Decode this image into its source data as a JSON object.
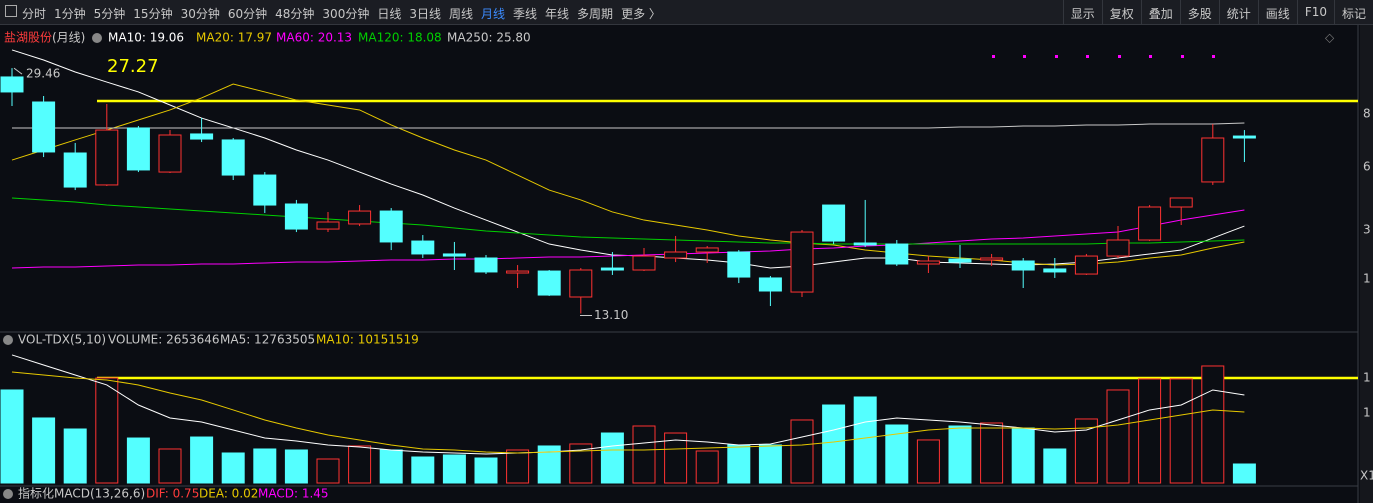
{
  "toolbar": {
    "periods": [
      "分时",
      "1分钟",
      "5分钟",
      "15分钟",
      "30分钟",
      "60分钟",
      "48分钟",
      "300分钟",
      "日线",
      "3日线",
      "周线",
      "月线",
      "季线",
      "年线",
      "多周期",
      "更多 〉"
    ],
    "active_period": 11,
    "tools": [
      "显示",
      "复权",
      "叠加",
      "多股",
      "统计",
      "画线",
      "F10",
      "标记"
    ]
  },
  "legend": {
    "stock": "盐湖股份",
    "period": "(月线)",
    "ma": [
      "MA10: 19.06",
      "MA20: 17.97",
      "MA60: 20.13",
      "MA120: 18.08",
      "MA250: 25.80"
    ],
    "right_axis": [
      "8",
      "6",
      "3",
      "1"
    ]
  },
  "annotations": {
    "high": 29.46,
    "low": {
      "value": 13.1,
      "label": "13.10"
    }
  },
  "chart_data": {
    "type": "candlestick",
    "ylim": [
      12,
      32
    ],
    "up_color": "#ff3232",
    "down_color": "#54ffff",
    "price_line": 27.27,
    "open": [
      28.87,
      27.2,
      23.8,
      21.67,
      25.47,
      22.53,
      25.07,
      24.67,
      22.33,
      20.4,
      18.73,
      19.07,
      19.93,
      17.93,
      17.07,
      16.8,
      15.8,
      15.93,
      14.2,
      16.13,
      16.0,
      16.8,
      17.2,
      17.2,
      15.47,
      14.53,
      20.33,
      17.8,
      17.73,
      16.4,
      16.73,
      16.67,
      16.6,
      16.07,
      15.73,
      16.93,
      18.0,
      20.2,
      21.87,
      24.93
    ],
    "high": [
      29.46,
      27.6,
      24.47,
      27.07,
      25.6,
      25.33,
      26.13,
      24.8,
      22.53,
      20.67,
      19.87,
      20.33,
      20.13,
      18.33,
      17.87,
      17.0,
      16.33,
      16.0,
      16.13,
      17.2,
      17.47,
      18.27,
      17.6,
      17.33,
      15.6,
      18.67,
      20.33,
      20.67,
      18.0,
      16.93,
      17.67,
      17.07,
      16.8,
      16.8,
      17.07,
      18.93,
      20.33,
      20.8,
      25.73,
      25.33
    ],
    "low": [
      26.93,
      23.53,
      21.33,
      21.6,
      22.53,
      22.47,
      24.53,
      22.0,
      19.8,
      18.53,
      18.53,
      18.93,
      17.33,
      16.8,
      16.0,
      15.73,
      14.8,
      14.27,
      13.1,
      15.67,
      15.93,
      16.53,
      16.47,
      15.13,
      13.6,
      14.2,
      17.73,
      17.53,
      16.27,
      15.8,
      16.13,
      16.27,
      14.8,
      15.47,
      15.67,
      16.8,
      17.93,
      19.0,
      21.67,
      23.2
    ],
    "close": [
      27.87,
      23.87,
      21.53,
      25.33,
      22.67,
      25.0,
      24.73,
      22.33,
      20.33,
      18.73,
      19.2,
      19.93,
      17.87,
      17.07,
      16.93,
      15.87,
      15.93,
      14.33,
      16.0,
      16.0,
      16.93,
      17.2,
      17.47,
      15.53,
      14.6,
      18.53,
      17.93,
      17.67,
      16.4,
      16.6,
      16.53,
      16.8,
      16.0,
      15.87,
      16.93,
      18.0,
      20.2,
      20.8,
      24.8,
      24.8
    ],
    "series": [
      {
        "color": "#ffffff",
        "values": [
          30.67,
          30.0,
          29.2,
          28.53,
          27.87,
          27.0,
          26.13,
          25.47,
          24.8,
          24.0,
          23.33,
          22.53,
          21.73,
          21.0,
          20.13,
          19.33,
          18.53,
          17.73,
          17.33,
          17.0,
          16.93,
          16.8,
          16.67,
          16.47,
          16.13,
          16.27,
          16.53,
          16.8,
          16.8,
          16.53,
          16.47,
          16.4,
          16.33,
          16.4,
          16.53,
          16.8,
          17.07,
          17.33,
          18.13,
          18.93
        ]
      },
      {
        "color": "#e6c800",
        "values": [
          23.33,
          24.0,
          24.67,
          25.33,
          26.0,
          26.67,
          27.47,
          28.4,
          27.87,
          27.33,
          27.0,
          26.67,
          25.67,
          24.8,
          24.0,
          23.33,
          22.33,
          21.33,
          20.67,
          19.87,
          19.33,
          19.0,
          18.67,
          18.27,
          18.0,
          17.8,
          17.67,
          17.33,
          17.13,
          16.93,
          16.8,
          16.67,
          16.47,
          16.33,
          16.4,
          16.53,
          16.8,
          17.0,
          17.47,
          17.87
        ]
      },
      {
        "color": "#ff00ff",
        "values": [
          16.13,
          16.2,
          16.2,
          16.27,
          16.33,
          16.33,
          16.4,
          16.4,
          16.47,
          16.53,
          16.53,
          16.6,
          16.67,
          16.67,
          16.73,
          16.73,
          16.8,
          16.87,
          16.87,
          16.93,
          17.0,
          17.07,
          17.13,
          17.2,
          17.27,
          17.4,
          17.47,
          17.6,
          17.67,
          17.8,
          17.93,
          18.07,
          18.13,
          18.27,
          18.4,
          18.53,
          18.93,
          19.33,
          19.67,
          20.0
        ]
      },
      {
        "color": "#00d000",
        "values": [
          20.8,
          20.67,
          20.53,
          20.33,
          20.2,
          20.07,
          19.93,
          19.8,
          19.67,
          19.53,
          19.4,
          19.27,
          19.13,
          19.0,
          18.8,
          18.6,
          18.47,
          18.33,
          18.2,
          18.13,
          18.07,
          18.0,
          17.93,
          17.87,
          17.8,
          17.8,
          17.73,
          17.73,
          17.73,
          17.73,
          17.73,
          17.73,
          17.73,
          17.73,
          17.73,
          17.8,
          17.8,
          17.87,
          17.93,
          18.0
        ]
      },
      {
        "color": "#c8c8c8",
        "values": [
          25.47,
          25.47,
          25.47,
          25.47,
          25.47,
          25.47,
          25.47,
          25.47,
          25.47,
          25.47,
          25.47,
          25.47,
          25.47,
          25.47,
          25.47,
          25.47,
          25.47,
          25.47,
          25.47,
          25.47,
          25.47,
          25.47,
          25.47,
          25.47,
          25.47,
          25.47,
          25.47,
          25.47,
          25.47,
          25.47,
          25.53,
          25.53,
          25.6,
          25.6,
          25.67,
          25.67,
          25.73,
          25.73,
          25.73,
          25.8
        ]
      }
    ]
  },
  "volume": {
    "legend": [
      "VOL-TDX(5,10)",
      "VOLUME: 2653646",
      "MA5: 12763505",
      "MA10: 10151519"
    ],
    "axis": [
      "1",
      "1",
      "X1"
    ],
    "ylim": [
      0,
      19270000
    ],
    "values": [
      12990000,
      9080000,
      7540000,
      14660000,
      6280000,
      4750000,
      6420000,
      4190000,
      4750000,
      4610000,
      3350000,
      5170000,
      4610000,
      3630000,
      3910000,
      3490000,
      4610000,
      5170000,
      5450000,
      6980000,
      7960000,
      6980000,
      4470000,
      5310000,
      5310000,
      8800000,
      10890000,
      12010000,
      8100000,
      6010000,
      7960000,
      8380000,
      7680000,
      4750000,
      8940000,
      12990000,
      14530000,
      14530000,
      16340000,
      2653646
    ],
    "series": [
      {
        "color": "#ffffff",
        "values": [
          17880000,
          16480000,
          15080000,
          13690000,
          10890000,
          9080000,
          8520000,
          7400000,
          6280000,
          5870000,
          5310000,
          5030000,
          4610000,
          4330000,
          4190000,
          4050000,
          4190000,
          4330000,
          4610000,
          5170000,
          5590000,
          6010000,
          5730000,
          5310000,
          5450000,
          6420000,
          7400000,
          8520000,
          9080000,
          8800000,
          8520000,
          8100000,
          7680000,
          7120000,
          7400000,
          8800000,
          10200000,
          10890000,
          12990000,
          12290000
        ]
      },
      {
        "color": "#e6c800",
        "values": [
          15500000,
          15080000,
          14660000,
          14390000,
          13690000,
          12570000,
          11590000,
          10200000,
          8800000,
          7680000,
          6700000,
          6010000,
          5310000,
          4750000,
          4610000,
          4330000,
          4190000,
          4330000,
          4470000,
          4610000,
          4610000,
          4750000,
          4890000,
          5030000,
          5170000,
          5310000,
          5730000,
          6280000,
          6840000,
          7400000,
          7680000,
          7680000,
          7680000,
          7540000,
          7680000,
          8100000,
          8800000,
          9500000,
          10200000,
          9920000
        ]
      }
    ]
  },
  "macd": {
    "legend": [
      "指标化MACD(13,26,6)",
      "DIF: 0.75",
      "DEA: 0.02",
      "MACD: 1.45"
    ]
  }
}
